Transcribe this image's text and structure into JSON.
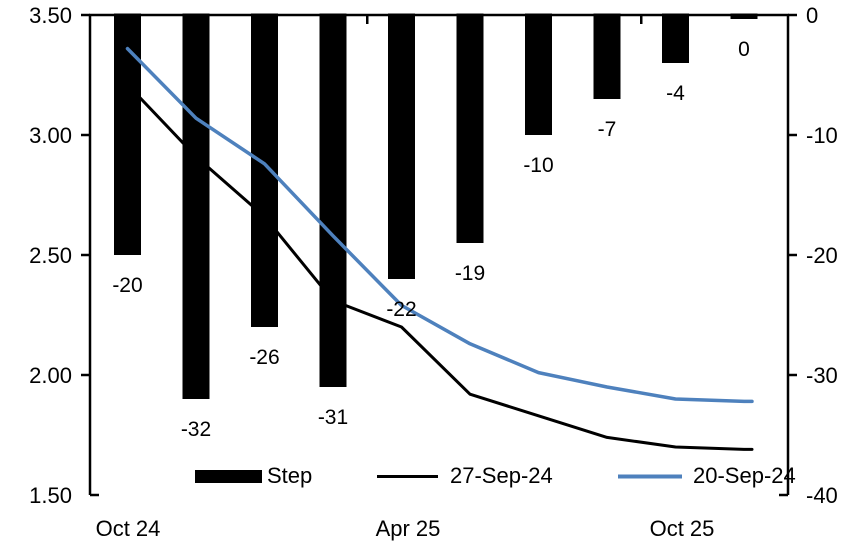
{
  "chart_data": {
    "type": "combo-bar-line",
    "title": "",
    "background": "#ffffff",
    "grid": false,
    "n_categories": 10,
    "x_axis": {
      "labels": [
        {
          "text": "Oct 24",
          "category": 0
        },
        {
          "text": "Apr 25",
          "category": 4
        },
        {
          "text": "Oct 25",
          "category": 8
        }
      ]
    },
    "left_axis": {
      "min": 1.5,
      "max": 3.5,
      "tick_values": [
        3.5,
        3.0,
        2.5,
        2.0,
        1.5
      ],
      "tick_labels": [
        "3.50",
        "3.00",
        "2.50",
        "2.00",
        "1.50"
      ]
    },
    "right_axis": {
      "min": -40,
      "max": 0,
      "tick_values": [
        0,
        -10,
        -20,
        -30,
        -40
      ],
      "tick_labels": [
        "0",
        "-10",
        "-20",
        "-30",
        "-40"
      ]
    },
    "bar_series": {
      "name": "Step",
      "axis": "right",
      "color": "#000000",
      "values": [
        -20,
        -32,
        -26,
        -31,
        -22,
        -19,
        -10,
        -7,
        -4,
        0
      ],
      "data_labels": [
        "-20",
        "-32",
        "-26",
        "-31",
        "-22",
        "-19",
        "-10",
        "-7",
        "-4",
        "0"
      ]
    },
    "line_series": [
      {
        "name": "27-Sep-24",
        "axis": "left",
        "color": "#000000",
        "stroke_width": 3,
        "values": [
          3.21,
          2.91,
          2.66,
          2.31,
          2.2,
          1.92,
          1.83,
          1.74,
          1.7,
          1.69
        ]
      },
      {
        "name": "20-Sep-24",
        "axis": "left",
        "color": "#4E81BD",
        "stroke_width": 3.5,
        "values": [
          3.36,
          3.07,
          2.88,
          2.58,
          2.29,
          2.13,
          2.01,
          1.95,
          1.9,
          1.89
        ]
      }
    ],
    "legend": {
      "position": "bottom",
      "entries": [
        {
          "label": "Step",
          "swatch": "rect",
          "color": "#000000"
        },
        {
          "label": "27-Sep-24",
          "swatch": "line",
          "color": "#000000"
        },
        {
          "label": "20-Sep-24",
          "swatch": "line",
          "color": "#4E81BD"
        }
      ]
    }
  }
}
